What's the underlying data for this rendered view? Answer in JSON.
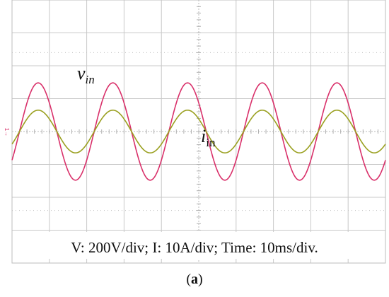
{
  "chart_data": {
    "type": "line",
    "divisions": {
      "x": 10,
      "y": 8
    },
    "scale_text": "V: 200V/div; I: 10A/div; Time: 10ms/div.",
    "channel_marker": "1→",
    "x_unit": "ms",
    "xlim": [
      0,
      100
    ],
    "series": [
      {
        "name": "v_in",
        "label_main": "v",
        "label_sub": "in",
        "label_style": "italic",
        "color": "#d9306a",
        "amplitude_div": 1.48,
        "unit": "V",
        "peak_value": 296,
        "period_ms": 20,
        "phase_ms": 2.0
      },
      {
        "name": "i_in",
        "label_main": "i",
        "label_sub": "in",
        "label_style": "mixed",
        "color": "#9aa020",
        "amplitude_div": 0.65,
        "unit": "A",
        "peak_value": 6.5,
        "period_ms": 20,
        "phase_ms": 2.0
      }
    ]
  },
  "caption": {
    "pre": "(",
    "bold": "a",
    "post": ")"
  }
}
